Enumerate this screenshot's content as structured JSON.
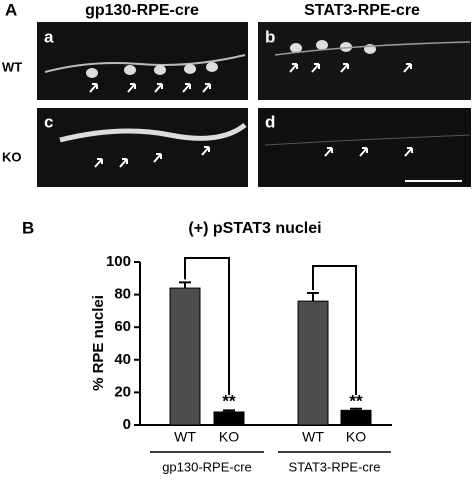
{
  "panel_a": {
    "label": "A",
    "columns": [
      "gp130-RPE-cre",
      "STAT3-RPE-cre"
    ],
    "rows": [
      "WT",
      "KO"
    ],
    "panels": [
      "a",
      "b",
      "c",
      "d"
    ]
  },
  "chart_data": {
    "type": "bar",
    "label": "B",
    "title": "(+) pSTAT3 nuclei",
    "y_label": "% RPE nuclei",
    "categories": [
      "WT",
      "KO",
      "WT",
      "KO"
    ],
    "groups": [
      "gp130-RPE-cre",
      "STAT3-RPE-cre"
    ],
    "values": [
      84,
      8,
      76,
      9
    ],
    "errors": [
      3.5,
      1,
      5,
      1
    ],
    "colors": [
      "#4d4d4d",
      "#000000",
      "#4d4d4d",
      "#000000"
    ],
    "annotations": [
      "**",
      "**"
    ],
    "ylim": [
      0,
      100
    ],
    "yticks": [
      0,
      20,
      40,
      60,
      80,
      100
    ]
  }
}
